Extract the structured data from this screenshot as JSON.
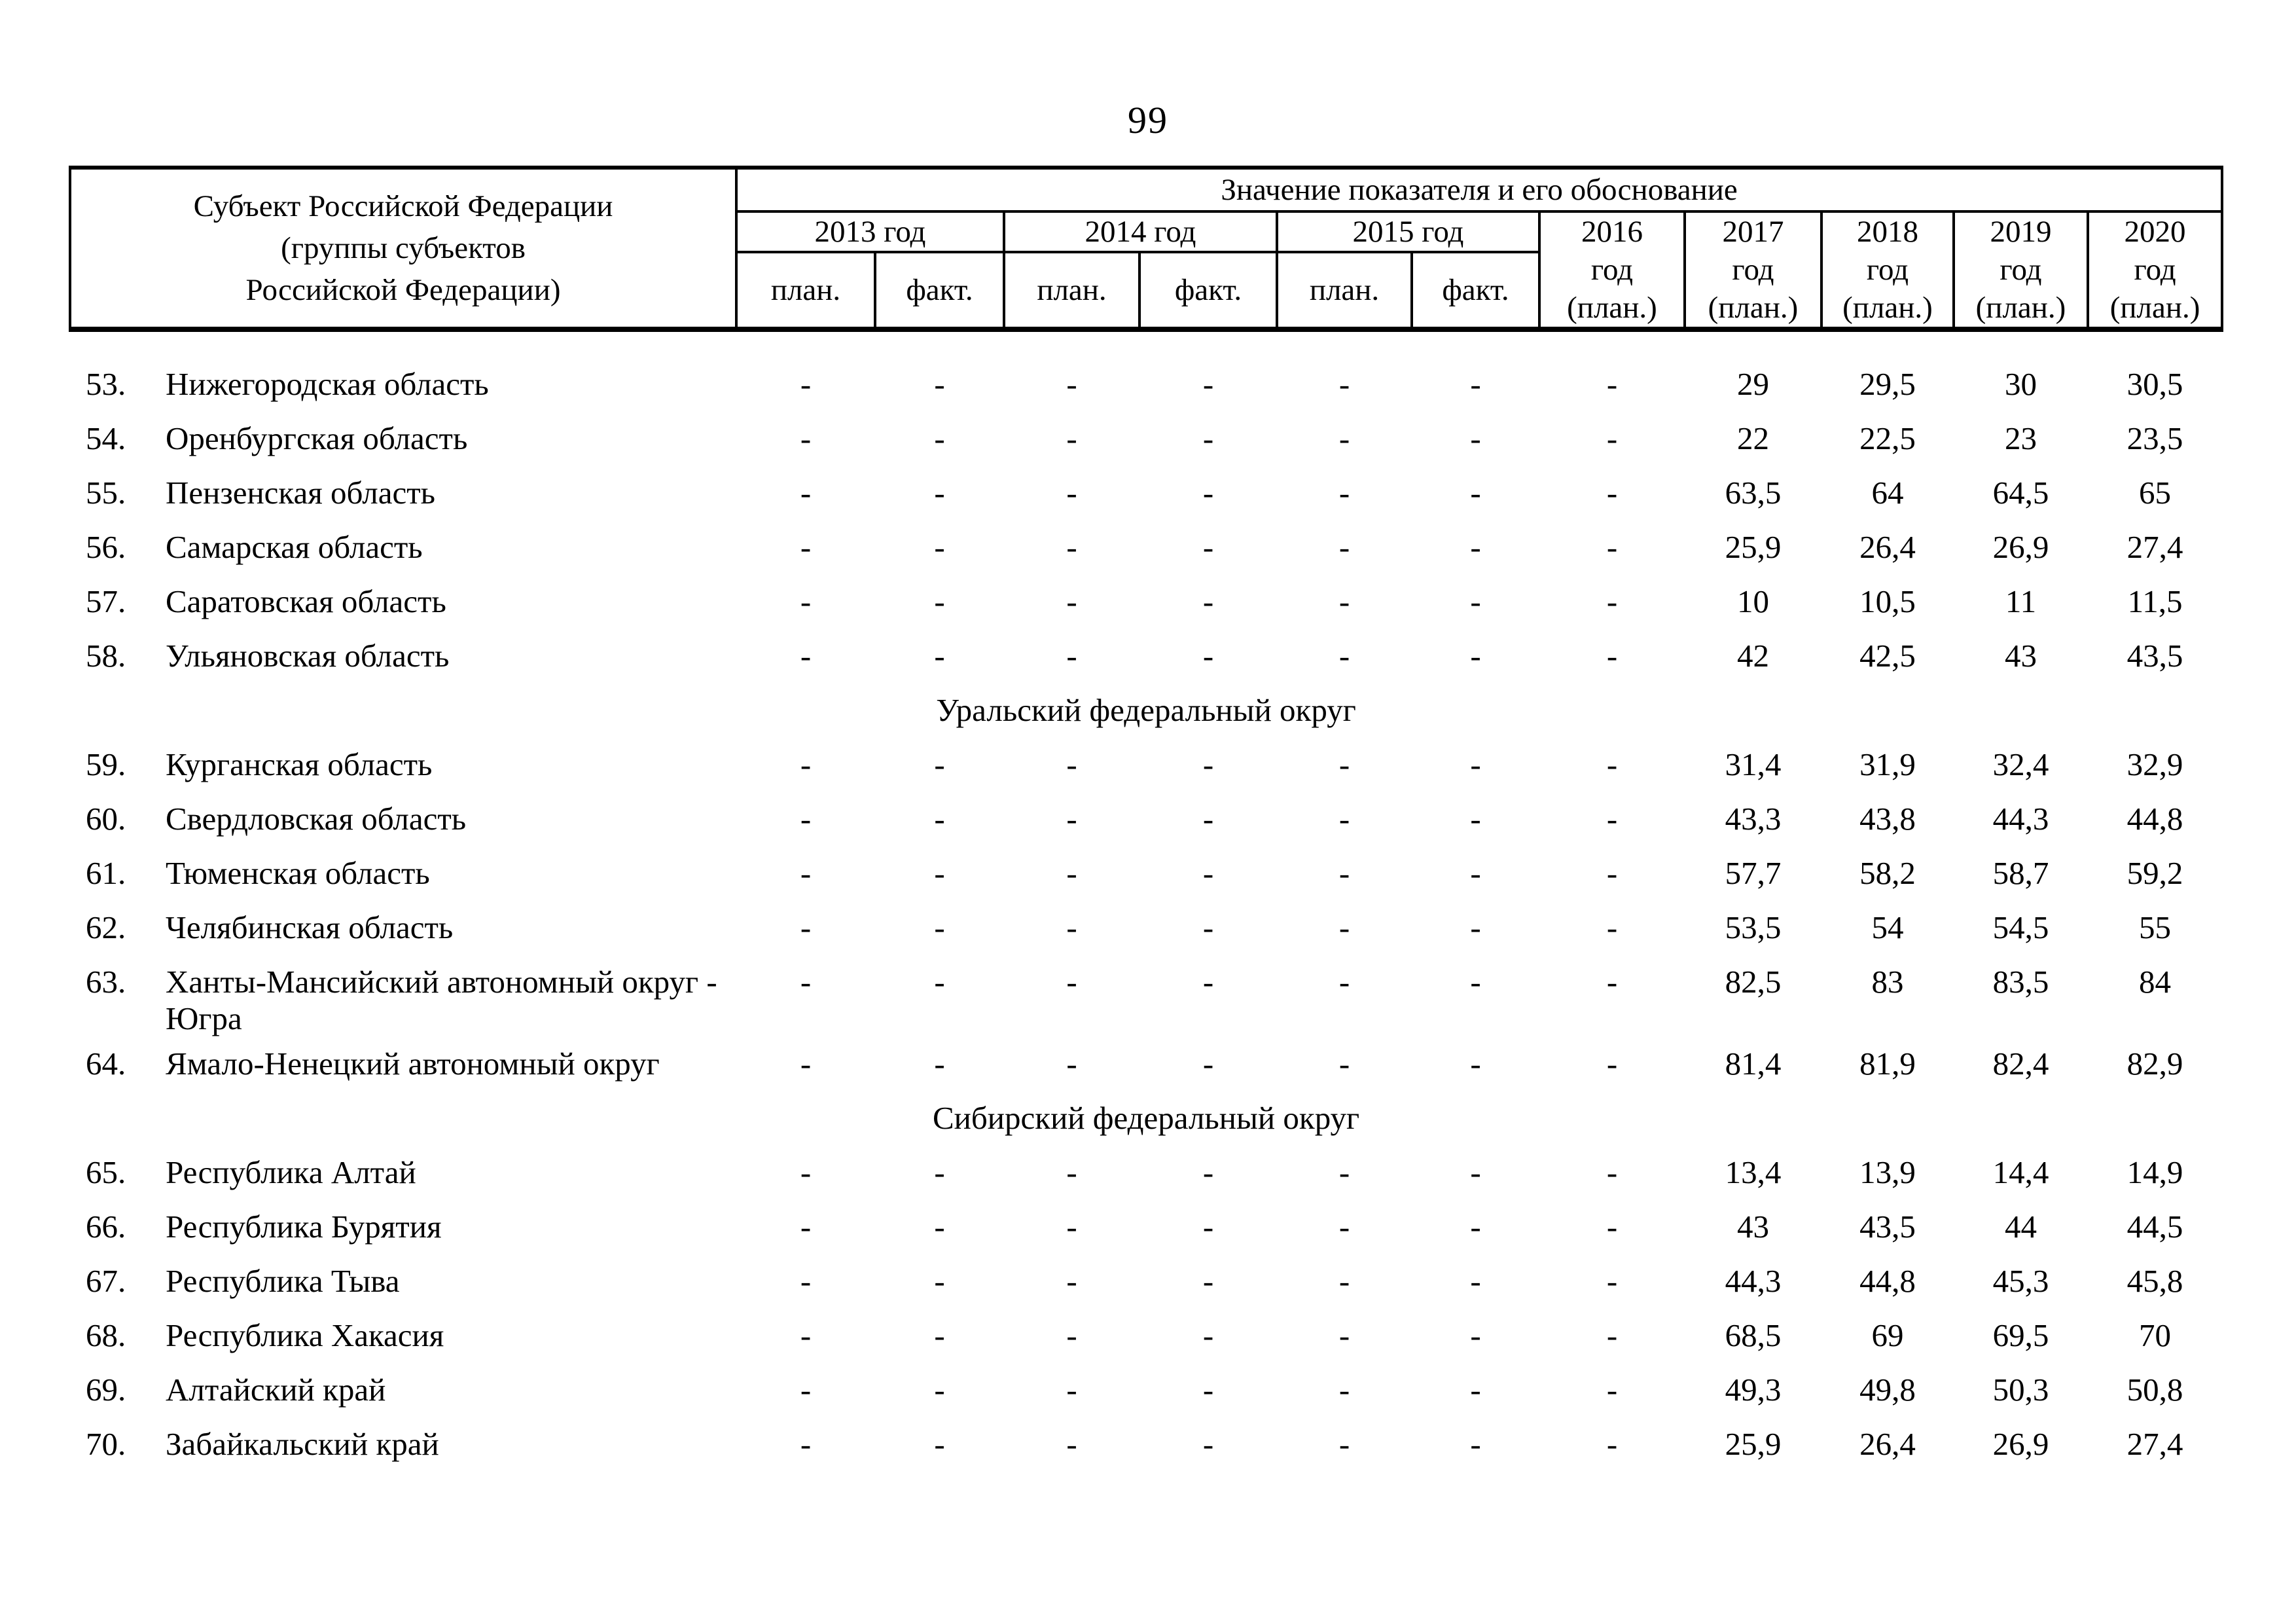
{
  "page_number": "99",
  "table": {
    "subject_header": [
      "Субъект Российской Федерации",
      "(группы субъектов",
      "Российской Федерации)"
    ],
    "value_header": "Значение показателя и его обоснование",
    "year_groups": [
      {
        "year": "2013 год",
        "plan": "план.",
        "fact": "факт."
      },
      {
        "year": "2014 год",
        "plan": "план.",
        "fact": "факт."
      },
      {
        "year": "2015 год",
        "plan": "план.",
        "fact": "факт."
      }
    ],
    "plan_year_headers": [
      {
        "lines": [
          "2016",
          "год",
          "(план.)"
        ]
      },
      {
        "lines": [
          "2017",
          "год",
          "(план.)"
        ]
      },
      {
        "lines": [
          "2018",
          "год",
          "(план.)"
        ]
      },
      {
        "lines": [
          "2019",
          "год",
          "(план.)"
        ]
      },
      {
        "lines": [
          "2020",
          "год",
          "(план.)"
        ]
      }
    ],
    "empty_value": "-",
    "sections": [
      {
        "title": null,
        "rows": [
          {
            "num": "53.",
            "name_lines": [
              "Нижегородская область"
            ],
            "values": [
              "29",
              "29,5",
              "30",
              "30,5"
            ]
          },
          {
            "num": "54.",
            "name_lines": [
              "Оренбургская область"
            ],
            "values": [
              "22",
              "22,5",
              "23",
              "23,5"
            ]
          },
          {
            "num": "55.",
            "name_lines": [
              "Пензенская область"
            ],
            "values": [
              "63,5",
              "64",
              "64,5",
              "65"
            ]
          },
          {
            "num": "56.",
            "name_lines": [
              "Самарская область"
            ],
            "values": [
              "25,9",
              "26,4",
              "26,9",
              "27,4"
            ]
          },
          {
            "num": "57.",
            "name_lines": [
              "Саратовская область"
            ],
            "values": [
              "10",
              "10,5",
              "11",
              "11,5"
            ]
          },
          {
            "num": "58.",
            "name_lines": [
              "Ульяновская область"
            ],
            "values": [
              "42",
              "42,5",
              "43",
              "43,5"
            ]
          }
        ]
      },
      {
        "title": "Уральский федеральный округ",
        "rows": [
          {
            "num": "59.",
            "name_lines": [
              "Курганская область"
            ],
            "values": [
              "31,4",
              "31,9",
              "32,4",
              "32,9"
            ]
          },
          {
            "num": "60.",
            "name_lines": [
              "Свердловская область"
            ],
            "values": [
              "43,3",
              "43,8",
              "44,3",
              "44,8"
            ]
          },
          {
            "num": "61.",
            "name_lines": [
              "Тюменская область"
            ],
            "values": [
              "57,7",
              "58,2",
              "58,7",
              "59,2"
            ]
          },
          {
            "num": "62.",
            "name_lines": [
              "Челябинская область"
            ],
            "values": [
              "53,5",
              "54",
              "54,5",
              "55"
            ]
          },
          {
            "num": "63.",
            "name_lines": [
              "Ханты-Мансийский автономный округ -",
              "Югра"
            ],
            "values": [
              "82,5",
              "83",
              "83,5",
              "84"
            ]
          },
          {
            "num": "64.",
            "name_lines": [
              "Ямало-Ненецкий автономный округ"
            ],
            "values": [
              "81,4",
              "81,9",
              "82,4",
              "82,9"
            ]
          }
        ]
      },
      {
        "title": "Сибирский федеральный округ",
        "rows": [
          {
            "num": "65.",
            "name_lines": [
              "Республика Алтай"
            ],
            "values": [
              "13,4",
              "13,9",
              "14,4",
              "14,9"
            ]
          },
          {
            "num": "66.",
            "name_lines": [
              "Республика Бурятия"
            ],
            "values": [
              "43",
              "43,5",
              "44",
              "44,5"
            ]
          },
          {
            "num": "67.",
            "name_lines": [
              "Республика Тыва"
            ],
            "values": [
              "44,3",
              "44,8",
              "45,3",
              "45,8"
            ]
          },
          {
            "num": "68.",
            "name_lines": [
              "Республика Хакасия"
            ],
            "values": [
              "68,5",
              "69",
              "69,5",
              "70"
            ]
          },
          {
            "num": "69.",
            "name_lines": [
              "Алтайский край"
            ],
            "values": [
              "49,3",
              "49,8",
              "50,3",
              "50,8"
            ]
          },
          {
            "num": "70.",
            "name_lines": [
              "Забайкальский край"
            ],
            "values": [
              "25,9",
              "26,4",
              "26,9",
              "27,4"
            ]
          }
        ]
      }
    ]
  }
}
